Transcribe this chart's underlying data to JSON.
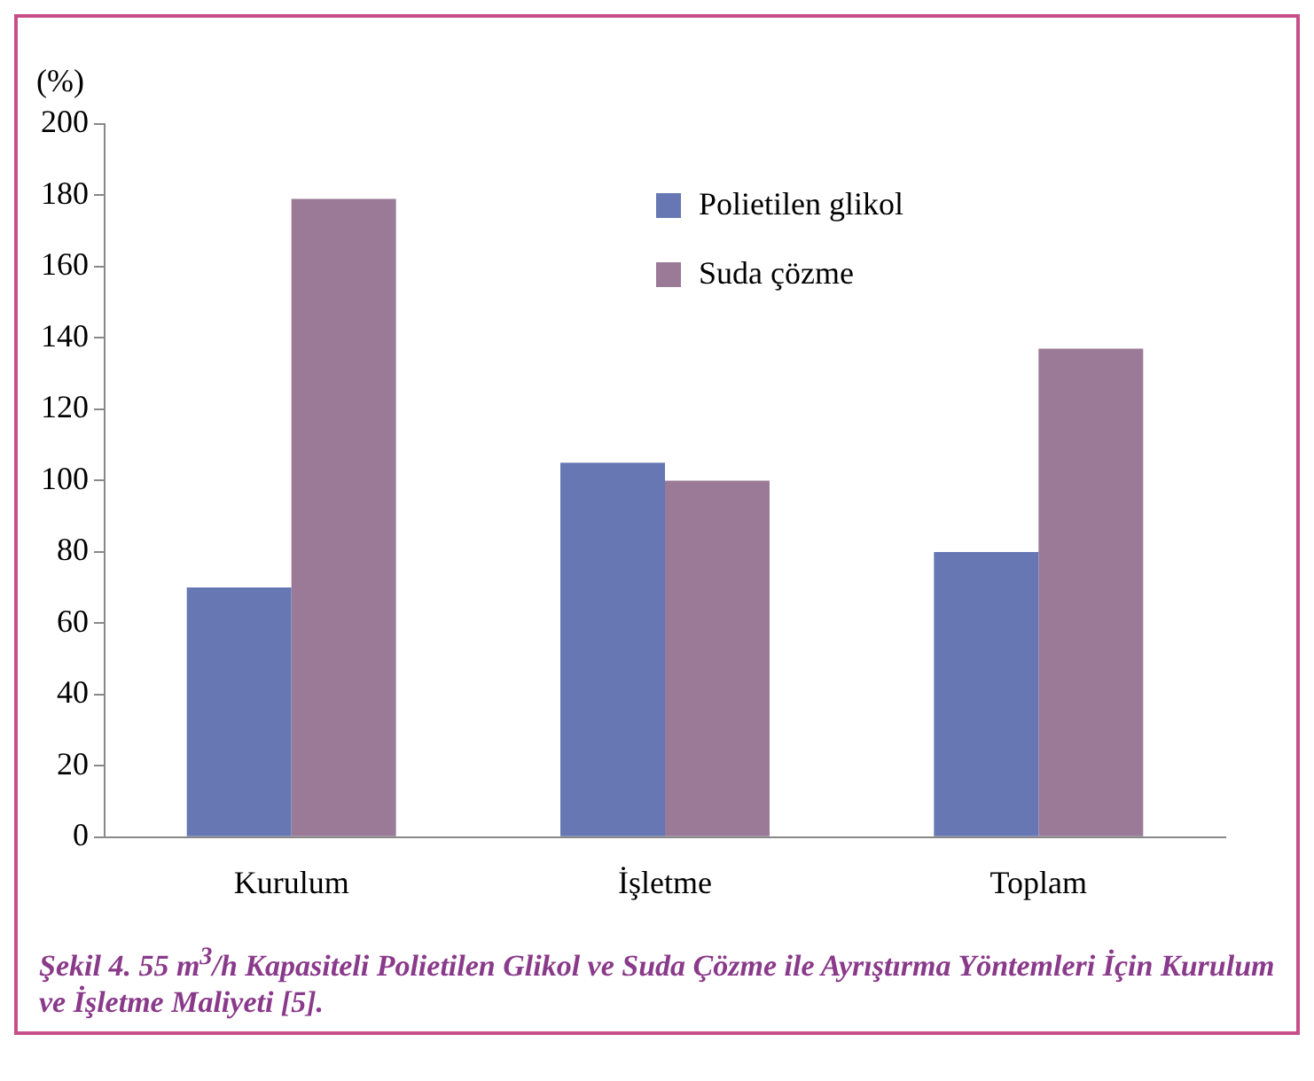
{
  "chart_data": {
    "type": "bar",
    "ylabel": "(%)",
    "categories": [
      "Kurulum",
      "İşletme",
      "Toplam"
    ],
    "series": [
      {
        "name": "Polietilen glikol",
        "color": "#6677b3",
        "values": [
          70,
          105,
          80
        ]
      },
      {
        "name": "Suda çözme",
        "color": "#9a7a96",
        "values": [
          179,
          100,
          137
        ]
      }
    ],
    "ylim": [
      0,
      200
    ],
    "yticks": [
      0,
      20,
      40,
      60,
      80,
      100,
      120,
      140,
      160,
      180,
      200
    ],
    "grid": false,
    "legend": "top right",
    "annotations": [
      "Şekil 4. 55 m$^{3}$/h Kapasiteli Polietilen Glikol ve Suda Çözme ile Ayrıştırma Yöntemleri İçin Kurulum ve İşletme Maliyeti [5]."
    ]
  }
}
